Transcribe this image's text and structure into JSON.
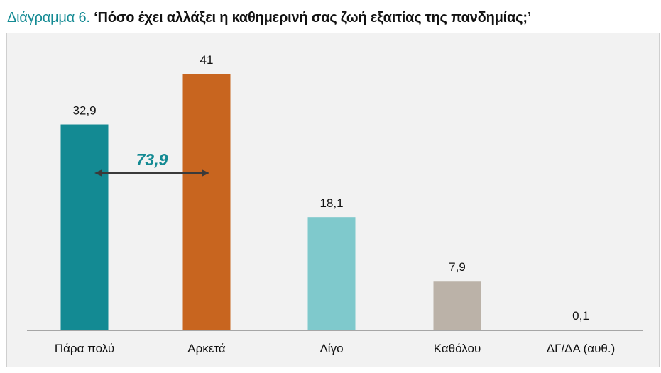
{
  "header": {
    "prefix": "Διάγραμμα 6.",
    "question": "‘Πόσο έχει αλλάξει η καθημερινή σας ζωή εξαιτίας της πανδημίας;’"
  },
  "chart_data": {
    "type": "bar",
    "categories": [
      "Πάρα πολύ",
      "Αρκετά",
      "Λίγο",
      "Καθόλου",
      "ΔΓ/ΔΑ (αυθ.)"
    ],
    "values": [
      32.9,
      41,
      18.1,
      7.9,
      0.1
    ],
    "value_labels": [
      "32,9",
      "41",
      "18,1",
      "7,9",
      "0,1"
    ],
    "colors": [
      "#138a93",
      "#c8651f",
      "#7fc9cc",
      "#bbb2a8",
      "#bbb2a8"
    ],
    "ylim": [
      0,
      45
    ],
    "grid": false,
    "annotation": {
      "text": "73,9",
      "spans": [
        "Πάρα πολύ",
        "Αρκετά"
      ],
      "color": "#138a93"
    },
    "title": "",
    "xlabel": "",
    "ylabel": ""
  }
}
